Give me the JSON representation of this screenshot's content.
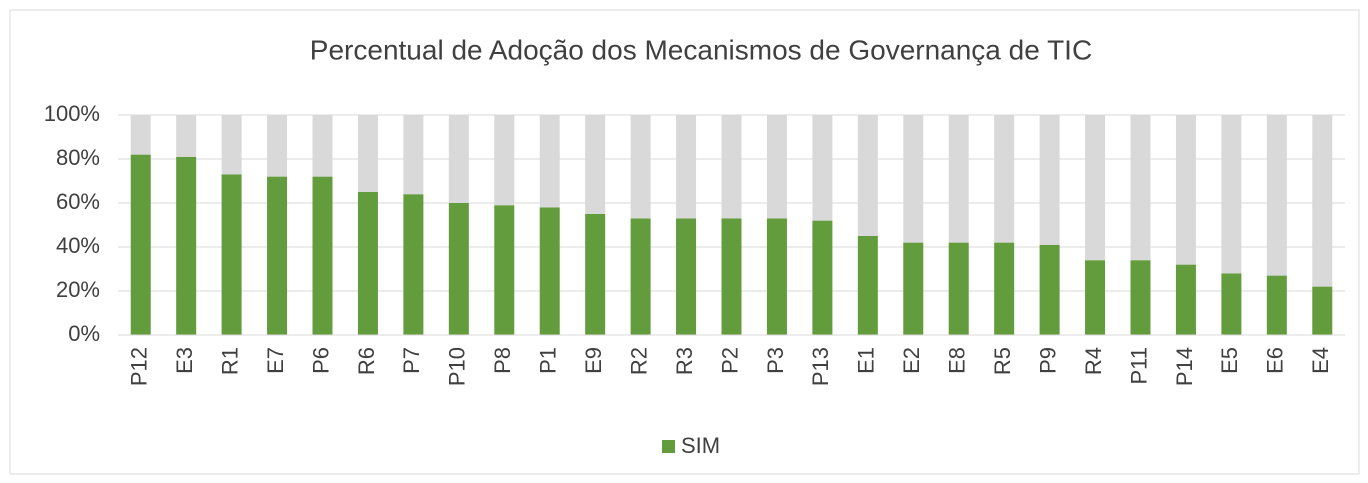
{
  "chart_data": {
    "type": "stacked_bar",
    "title": "Percentual de Adoção dos Mecanismos de Governança de TIC",
    "categories": [
      "P12",
      "E3",
      "R1",
      "E7",
      "P6",
      "R6",
      "P7",
      "P10",
      "P8",
      "P1",
      "E9",
      "R2",
      "R3",
      "P2",
      "P3",
      "P13",
      "E1",
      "E2",
      "E8",
      "R5",
      "P9",
      "R4",
      "P11",
      "P14",
      "E5",
      "E6",
      "E4"
    ],
    "series": [
      {
        "name": "SIM",
        "color": "#639c3c",
        "values": [
          82,
          81,
          73,
          72,
          72,
          65,
          64,
          60,
          59,
          58,
          55,
          53,
          53,
          53,
          53,
          52,
          45,
          42,
          42,
          42,
          41,
          34,
          34,
          32,
          28,
          27,
          22
        ]
      },
      {
        "color": "#d9d9d9",
        "values": [
          18,
          19,
          27,
          28,
          28,
          35,
          36,
          40,
          41,
          42,
          45,
          47,
          47,
          47,
          47,
          48,
          55,
          58,
          58,
          58,
          59,
          66,
          66,
          68,
          72,
          73,
          78
        ]
      }
    ],
    "ylim": [
      0,
      100
    ],
    "yticks": [
      {
        "value": 0,
        "label": "0%"
      },
      {
        "value": 20,
        "label": "20%"
      },
      {
        "value": 40,
        "label": "40%"
      },
      {
        "value": 60,
        "label": "60%"
      },
      {
        "value": 80,
        "label": "80%"
      },
      {
        "value": 100,
        "label": "100%"
      }
    ],
    "grid": true,
    "legend": "bottom"
  }
}
